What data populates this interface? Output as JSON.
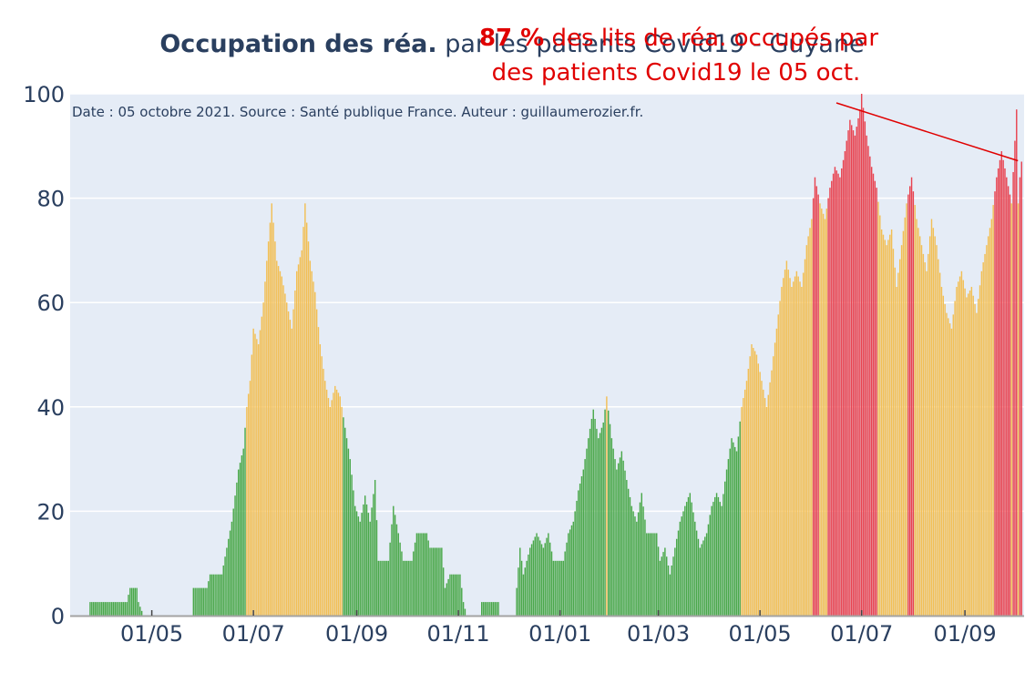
{
  "chart_data": {
    "type": "bar",
    "title_bold": "Occupation des réa.",
    "title_rest": " par les patients Covid19 - Guyane",
    "subtitle": "Date : 05 octobre 2021. Source : Santé publique France. Auteur : guillaumerozier.fr.",
    "annotation": {
      "value_label": "87 %",
      "line1_rest": " des lits de réa. occupés par",
      "line2": "des patients Covid19 le 05 oct.",
      "target_value": 87
    },
    "xlabel": "",
    "ylabel": "",
    "ylim": [
      0,
      100
    ],
    "y_ticks": [
      0,
      20,
      40,
      60,
      80,
      100
    ],
    "x_ticks": [
      "01/05",
      "01/07",
      "01/09",
      "01/11",
      "01/01",
      "01/03",
      "01/05",
      "01/07",
      "01/09"
    ],
    "grid": true,
    "color_thresholds": {
      "green_below": 40,
      "orange_below": 80
    },
    "colors": {
      "green": "#4aa84a",
      "orange": "#f2bf55",
      "red": "#e8424f",
      "plot_bg": "#e5ecf6",
      "grid": "#ffffff",
      "text": "#2a3f5f",
      "annotation": "#e00000"
    },
    "x_start": "2020-03-19",
    "x_end": "2021-10-05",
    "series": [
      {
        "values": [
          0,
          0,
          0,
          0,
          0,
          0,
          0,
          0,
          0,
          0,
          0,
          0,
          0,
          0,
          0,
          0,
          0,
          0,
          0,
          0,
          0,
          0,
          0,
          0,
          0,
          0,
          0,
          0,
          0,
          0,
          0,
          0,
          0,
          0,
          0,
          0,
          0,
          0,
          0,
          0,
          0,
          0,
          0,
          0,
          0,
          0,
          0,
          0,
          0,
          0,
          0,
          0,
          0,
          0,
          0,
          0,
          0,
          0,
          0,
          0,
          0,
          0,
          0,
          0,
          0,
          0,
          0,
          0,
          0,
          0,
          0,
          0,
          0,
          0,
          0,
          0,
          0,
          0,
          0,
          0,
          0,
          0,
          0,
          0,
          0,
          0,
          0,
          0,
          0,
          0,
          0,
          0,
          0,
          0,
          0,
          0,
          0,
          0,
          0,
          0,
          0,
          0,
          0,
          0,
          0,
          0,
          0,
          0,
          0,
          0,
          0,
          0,
          0,
          0,
          0,
          0,
          0,
          0,
          0,
          0,
          0,
          0,
          0,
          0,
          0,
          0,
          0,
          0,
          0,
          0,
          0,
          0,
          0,
          0,
          0,
          0,
          0,
          0,
          0,
          0,
          0,
          0,
          0,
          0,
          0,
          0,
          0,
          0,
          0,
          0,
          0,
          0,
          0,
          0,
          0,
          0,
          0,
          0,
          0,
          0,
          0,
          0,
          0,
          0,
          0,
          0,
          0,
          0,
          0,
          0,
          0,
          0,
          0,
          0,
          0,
          0,
          0,
          0,
          0,
          0,
          0,
          0,
          0,
          0,
          0,
          0,
          0,
          0,
          0,
          0,
          0,
          0
        ]
      }
    ],
    "anchors": [
      [
        "2020-03-25",
        2.6
      ],
      [
        "2020-04-15",
        2.6
      ],
      [
        "2020-04-16",
        2.6
      ],
      [
        "2020-04-18",
        5.3
      ],
      [
        "2020-04-22",
        5.3
      ],
      [
        "2020-04-23",
        2.6
      ],
      [
        "2020-04-26",
        0
      ],
      [
        "2020-05-25",
        0
      ],
      [
        "2020-05-26",
        5.3
      ],
      [
        "2020-06-03",
        5.3
      ],
      [
        "2020-06-05",
        7.9
      ],
      [
        "2020-06-12",
        7.9
      ],
      [
        "2020-06-15",
        13
      ],
      [
        "2020-06-18",
        18
      ],
      [
        "2020-06-22",
        28
      ],
      [
        "2020-06-25",
        32
      ],
      [
        "2020-06-27",
        40
      ],
      [
        "2020-06-29",
        45
      ],
      [
        "2020-07-01",
        55
      ],
      [
        "2020-07-04",
        52
      ],
      [
        "2020-07-07",
        60
      ],
      [
        "2020-07-09",
        68
      ],
      [
        "2020-07-12",
        79
      ],
      [
        "2020-07-15",
        68
      ],
      [
        "2020-07-18",
        65
      ],
      [
        "2020-07-21",
        60
      ],
      [
        "2020-07-24",
        55
      ],
      [
        "2020-07-27",
        66
      ],
      [
        "2020-07-30",
        70
      ],
      [
        "2020-08-01",
        79
      ],
      [
        "2020-08-04",
        68
      ],
      [
        "2020-08-07",
        62
      ],
      [
        "2020-08-10",
        52
      ],
      [
        "2020-08-13",
        45
      ],
      [
        "2020-08-16",
        40
      ],
      [
        "2020-08-19",
        44
      ],
      [
        "2020-08-22",
        42
      ],
      [
        "2020-08-25",
        36
      ],
      [
        "2020-08-28",
        30
      ],
      [
        "2020-08-31",
        21
      ],
      [
        "2020-09-03",
        18
      ],
      [
        "2020-09-06",
        23
      ],
      [
        "2020-09-09",
        18
      ],
      [
        "2020-09-12",
        26
      ],
      [
        "2020-09-14",
        10.5
      ],
      [
        "2020-09-20",
        10.5
      ],
      [
        "2020-09-23",
        21
      ],
      [
        "2020-09-26",
        15.8
      ],
      [
        "2020-09-29",
        10.5
      ],
      [
        "2020-10-04",
        10.5
      ],
      [
        "2020-10-07",
        15.8
      ],
      [
        "2020-10-13",
        15.8
      ],
      [
        "2020-10-15",
        13
      ],
      [
        "2020-10-22",
        13
      ],
      [
        "2020-10-24",
        5.3
      ],
      [
        "2020-10-27",
        7.9
      ],
      [
        "2020-11-02",
        7.9
      ],
      [
        "2020-11-04",
        2.6
      ],
      [
        "2020-11-06",
        0
      ],
      [
        "2020-11-14",
        0
      ],
      [
        "2020-11-15",
        2.6
      ],
      [
        "2020-11-25",
        2.6
      ],
      [
        "2020-11-26",
        0
      ],
      [
        "2020-12-05",
        0
      ],
      [
        "2020-12-06",
        5.3
      ],
      [
        "2020-12-08",
        13
      ],
      [
        "2020-12-10",
        7.9
      ],
      [
        "2020-12-14",
        13
      ],
      [
        "2020-12-18",
        15.8
      ],
      [
        "2020-12-22",
        13
      ],
      [
        "2020-12-25",
        15.8
      ],
      [
        "2020-12-28",
        10.5
      ],
      [
        "2021-01-03",
        10.5
      ],
      [
        "2021-01-06",
        15.8
      ],
      [
        "2021-01-09",
        18
      ],
      [
        "2021-01-12",
        24
      ],
      [
        "2021-01-15",
        28
      ],
      [
        "2021-01-18",
        34
      ],
      [
        "2021-01-21",
        39.5
      ],
      [
        "2021-01-24",
        34
      ],
      [
        "2021-01-27",
        37
      ],
      [
        "2021-01-29",
        42
      ],
      [
        "2021-02-01",
        34
      ],
      [
        "2021-02-04",
        28
      ],
      [
        "2021-02-07",
        31.5
      ],
      [
        "2021-02-10",
        26
      ],
      [
        "2021-02-13",
        21
      ],
      [
        "2021-02-16",
        18
      ],
      [
        "2021-02-19",
        23.5
      ],
      [
        "2021-02-22",
        15.8
      ],
      [
        "2021-02-28",
        15.8
      ],
      [
        "2021-03-02",
        10.5
      ],
      [
        "2021-03-05",
        13
      ],
      [
        "2021-03-08",
        7.9
      ],
      [
        "2021-03-11",
        13
      ],
      [
        "2021-03-14",
        18
      ],
      [
        "2021-03-17",
        21
      ],
      [
        "2021-03-20",
        23.5
      ],
      [
        "2021-03-23",
        18
      ],
      [
        "2021-03-26",
        13
      ],
      [
        "2021-03-30",
        15.8
      ],
      [
        "2021-04-02",
        21
      ],
      [
        "2021-04-05",
        23.5
      ],
      [
        "2021-04-08",
        21
      ],
      [
        "2021-04-11",
        28
      ],
      [
        "2021-04-14",
        34
      ],
      [
        "2021-04-17",
        31.5
      ],
      [
        "2021-04-20",
        40
      ],
      [
        "2021-04-23",
        45
      ],
      [
        "2021-04-26",
        52
      ],
      [
        "2021-04-29",
        50
      ],
      [
        "2021-05-02",
        45
      ],
      [
        "2021-05-05",
        40
      ],
      [
        "2021-05-08",
        47
      ],
      [
        "2021-05-11",
        55
      ],
      [
        "2021-05-14",
        63
      ],
      [
        "2021-05-17",
        68
      ],
      [
        "2021-05-20",
        63
      ],
      [
        "2021-05-23",
        66
      ],
      [
        "2021-05-26",
        63
      ],
      [
        "2021-05-29",
        71
      ],
      [
        "2021-06-01",
        76
      ],
      [
        "2021-06-03",
        84
      ],
      [
        "2021-06-06",
        79
      ],
      [
        "2021-06-09",
        76
      ],
      [
        "2021-06-12",
        82
      ],
      [
        "2021-06-15",
        86
      ],
      [
        "2021-06-18",
        84
      ],
      [
        "2021-06-21",
        89
      ],
      [
        "2021-06-24",
        95
      ],
      [
        "2021-06-27",
        92
      ],
      [
        "2021-06-30",
        97
      ],
      [
        "2021-07-01",
        100
      ],
      [
        "2021-07-04",
        92
      ],
      [
        "2021-07-07",
        86
      ],
      [
        "2021-07-10",
        82
      ],
      [
        "2021-07-13",
        74
      ],
      [
        "2021-07-16",
        71
      ],
      [
        "2021-07-19",
        74
      ],
      [
        "2021-07-22",
        63
      ],
      [
        "2021-07-25",
        71
      ],
      [
        "2021-07-28",
        79
      ],
      [
        "2021-07-31",
        84
      ],
      [
        "2021-08-03",
        76
      ],
      [
        "2021-08-06",
        71
      ],
      [
        "2021-08-09",
        66
      ],
      [
        "2021-08-12",
        76
      ],
      [
        "2021-08-15",
        71
      ],
      [
        "2021-08-18",
        63
      ],
      [
        "2021-08-21",
        58
      ],
      [
        "2021-08-24",
        55
      ],
      [
        "2021-08-27",
        63
      ],
      [
        "2021-08-30",
        66
      ],
      [
        "2021-09-02",
        61
      ],
      [
        "2021-09-05",
        63
      ],
      [
        "2021-09-08",
        58
      ],
      [
        "2021-09-11",
        66
      ],
      [
        "2021-09-14",
        71
      ],
      [
        "2021-09-17",
        76
      ],
      [
        "2021-09-20",
        84
      ],
      [
        "2021-09-23",
        89
      ],
      [
        "2021-09-26",
        84
      ],
      [
        "2021-09-29",
        79
      ],
      [
        "2021-10-02",
        97
      ],
      [
        "2021-10-03",
        79
      ],
      [
        "2021-10-04",
        84
      ],
      [
        "2021-10-05",
        87
      ]
    ]
  }
}
